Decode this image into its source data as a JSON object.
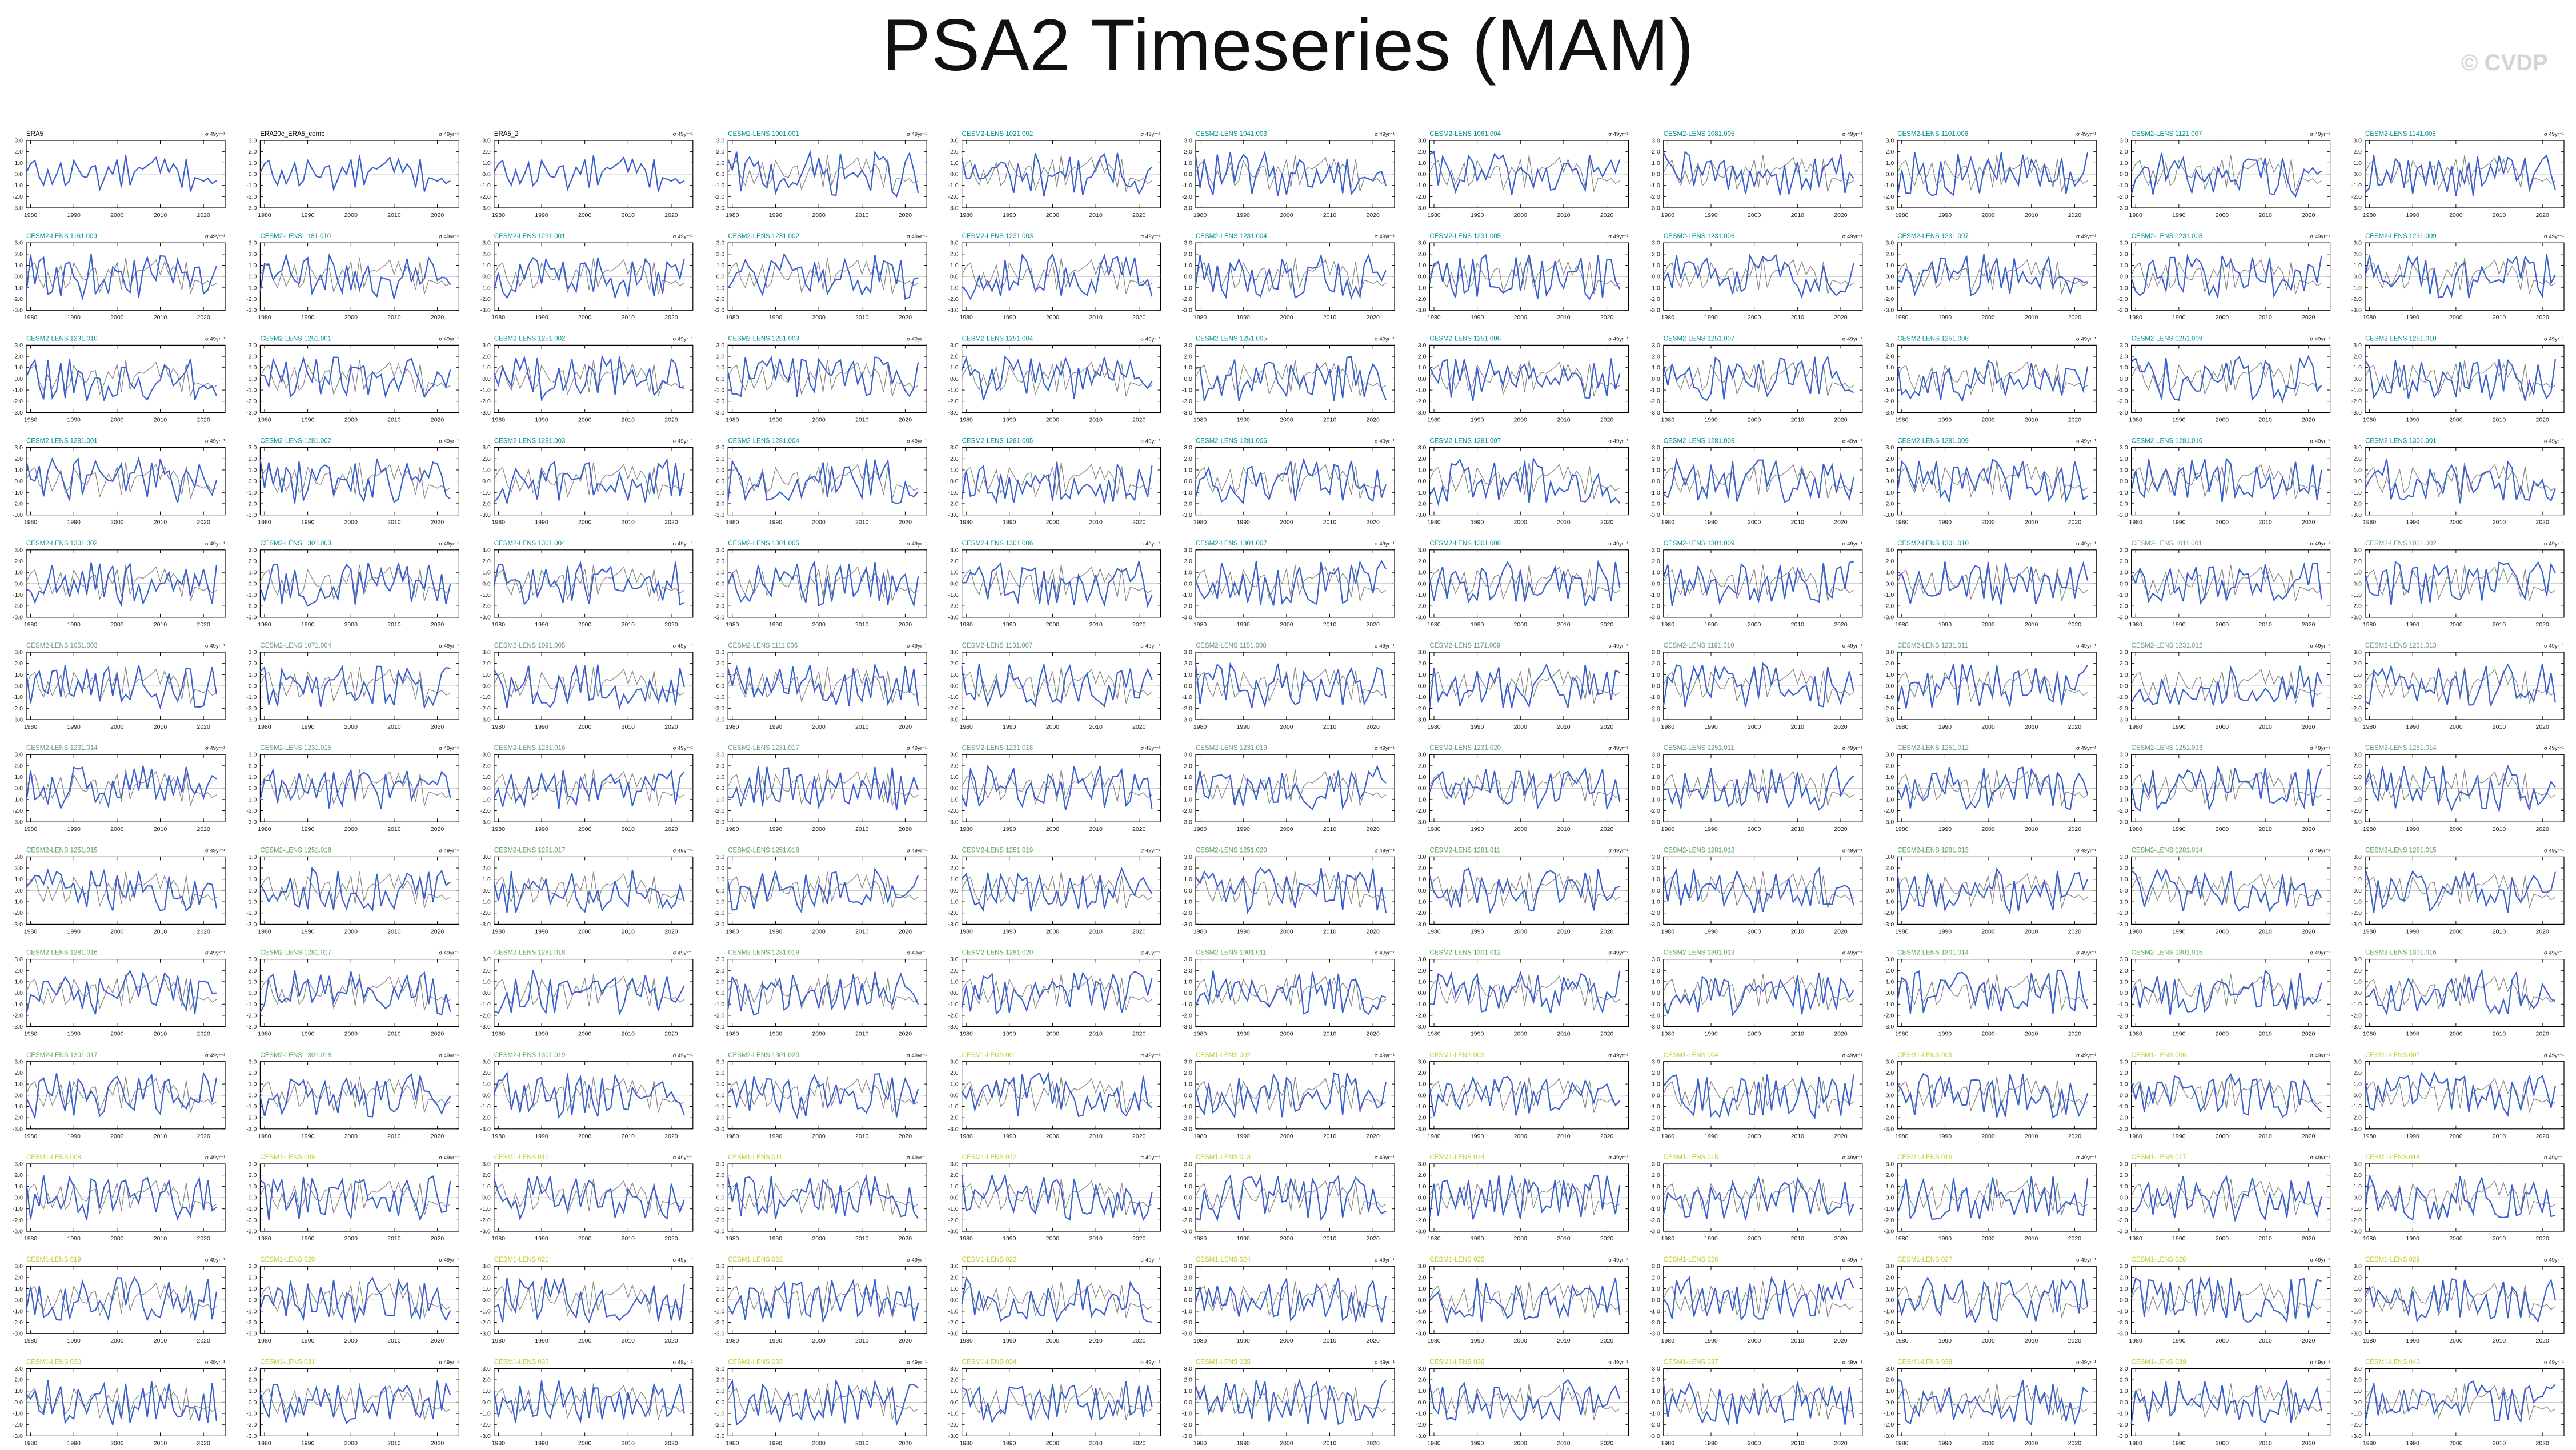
{
  "title": "PSA2 Timeseries (MAM)",
  "watermark": "© CVDP",
  "units": "σ 49yr⁻¹",
  "colors": {
    "observed_series": "#3a5fcd",
    "ensemble_series": "#888888",
    "obs_title": "#000000",
    "teal_title": "#009090",
    "grey_title": "#6a9a8a",
    "green_title": "#58a558",
    "yellow_title": "#c8c832"
  },
  "chart_data": {
    "type": "line",
    "xlim": [
      1979,
      2025
    ],
    "x_ticks": [
      "1980",
      "1990",
      "2000",
      "2010",
      "2020"
    ],
    "y_ticks": [
      "3.0",
      "2.0",
      "1.0",
      "0.0",
      "-1.0",
      "-2.0",
      "-3.0"
    ],
    "ylim": [
      -3.0,
      3.0
    ],
    "grid": false,
    "series_names_note": "",
    "panels": [
      {
        "name": "ERA5",
        "color": "obs"
      },
      {
        "name": "ERA20c_ERA5_comb",
        "color": "obs"
      },
      {
        "name": "ERA5_2",
        "color": "obs"
      },
      {
        "name": "CESM2-LENS 1001.001",
        "color": "teal"
      },
      {
        "name": "CESM2-LENS 1021.002",
        "color": "teal"
      },
      {
        "name": "CESM2-LENS 1041.003",
        "color": "teal"
      },
      {
        "name": "CESM2-LENS 1061.004",
        "color": "teal"
      },
      {
        "name": "CESM2-LENS 1081.005",
        "color": "teal"
      },
      {
        "name": "CESM2-LENS 1101.006",
        "color": "teal"
      },
      {
        "name": "CESM2-LENS 1121.007",
        "color": "teal"
      },
      {
        "name": "CESM2-LENS 1141.008",
        "color": "teal"
      },
      {
        "name": "CESM2-LENS 1161.009",
        "color": "teal"
      },
      {
        "name": "CESM2-LENS 1181.010",
        "color": "teal"
      },
      {
        "name": "CESM2-LENS 1231.001",
        "color": "teal"
      },
      {
        "name": "CESM2-LENS 1231.002",
        "color": "teal"
      },
      {
        "name": "CESM2-LENS 1231.003",
        "color": "teal"
      },
      {
        "name": "CESM2-LENS 1231.004",
        "color": "teal"
      },
      {
        "name": "CESM2-LENS 1231.005",
        "color": "teal"
      },
      {
        "name": "CESM2-LENS 1231.006",
        "color": "teal"
      },
      {
        "name": "CESM2-LENS 1231.007",
        "color": "teal"
      },
      {
        "name": "CESM2-LENS 1231.008",
        "color": "teal"
      },
      {
        "name": "CESM2-LENS 1231.009",
        "color": "teal"
      },
      {
        "name": "CESM2-LENS 1231.010",
        "color": "teal"
      },
      {
        "name": "CESM2-LENS 1251.001",
        "color": "teal"
      },
      {
        "name": "CESM2-LENS 1251.002",
        "color": "teal"
      },
      {
        "name": "CESM2-LENS 1251.003",
        "color": "teal"
      },
      {
        "name": "CESM2-LENS 1251.004",
        "color": "teal"
      },
      {
        "name": "CESM2-LENS 1251.005",
        "color": "teal"
      },
      {
        "name": "CESM2-LENS 1251.006",
        "color": "teal"
      },
      {
        "name": "CESM2-LENS 1251.007",
        "color": "teal"
      },
      {
        "name": "CESM2-LENS 1251.008",
        "color": "teal"
      },
      {
        "name": "CESM2-LENS 1251.009",
        "color": "teal"
      },
      {
        "name": "CESM2-LENS 1251.010",
        "color": "teal"
      },
      {
        "name": "CESM2-LENS 1281.001",
        "color": "teal"
      },
      {
        "name": "CESM2-LENS 1281.002",
        "color": "teal"
      },
      {
        "name": "CESM2-LENS 1281.003",
        "color": "teal"
      },
      {
        "name": "CESM2-LENS 1281.004",
        "color": "teal"
      },
      {
        "name": "CESM2-LENS 1281.005",
        "color": "teal"
      },
      {
        "name": "CESM2-LENS 1281.006",
        "color": "teal"
      },
      {
        "name": "CESM2-LENS 1281.007",
        "color": "teal"
      },
      {
        "name": "CESM2-LENS 1281.008",
        "color": "teal"
      },
      {
        "name": "CESM2-LENS 1281.009",
        "color": "teal"
      },
      {
        "name": "CESM2-LENS 1281.010",
        "color": "teal"
      },
      {
        "name": "CESM2-LENS 1301.001",
        "color": "teal"
      },
      {
        "name": "CESM2-LENS 1301.002",
        "color": "teal"
      },
      {
        "name": "CESM2-LENS 1301.003",
        "color": "teal"
      },
      {
        "name": "CESM2-LENS 1301.004",
        "color": "teal"
      },
      {
        "name": "CESM2-LENS 1301.005",
        "color": "teal"
      },
      {
        "name": "CESM2-LENS 1301.006",
        "color": "teal"
      },
      {
        "name": "CESM2-LENS 1301.007",
        "color": "teal"
      },
      {
        "name": "CESM2-LENS 1301.008",
        "color": "teal"
      },
      {
        "name": "CESM2-LENS 1301.009",
        "color": "teal"
      },
      {
        "name": "CESM2-LENS 1301.010",
        "color": "teal"
      },
      {
        "name": "CESM2-LENS 1011.001",
        "color": "grey"
      },
      {
        "name": "CESM2-LENS 1031.002",
        "color": "grey"
      },
      {
        "name": "CESM2-LENS 1051.003",
        "color": "grey"
      },
      {
        "name": "CESM2-LENS 1071.004",
        "color": "grey"
      },
      {
        "name": "CESM2-LENS 1091.005",
        "color": "grey"
      },
      {
        "name": "CESM2-LENS 1111.006",
        "color": "grey"
      },
      {
        "name": "CESM2-LENS 1131.007",
        "color": "grey"
      },
      {
        "name": "CESM2-LENS 1151.008",
        "color": "grey"
      },
      {
        "name": "CESM2-LENS 1171.009",
        "color": "grey"
      },
      {
        "name": "CESM2-LENS 1191.010",
        "color": "grey"
      },
      {
        "name": "CESM2-LENS 1231.011",
        "color": "grey"
      },
      {
        "name": "CESM2-LENS 1231.012",
        "color": "grey"
      },
      {
        "name": "CESM2-LENS 1231.013",
        "color": "grey"
      },
      {
        "name": "CESM2-LENS 1231.014",
        "color": "grey"
      },
      {
        "name": "CESM2-LENS 1231.015",
        "color": "grey"
      },
      {
        "name": "CESM2-LENS 1231.016",
        "color": "grey"
      },
      {
        "name": "CESM2-LENS 1231.017",
        "color": "grey"
      },
      {
        "name": "CESM2-LENS 1231.018",
        "color": "grey"
      },
      {
        "name": "CESM2-LENS 1231.019",
        "color": "grey"
      },
      {
        "name": "CESM2-LENS 1231.020",
        "color": "grey"
      },
      {
        "name": "CESM2-LENS 1251.011",
        "color": "grey"
      },
      {
        "name": "CESM2-LENS 1251.012",
        "color": "grey"
      },
      {
        "name": "CESM2-LENS 1251.013",
        "color": "grey"
      },
      {
        "name": "CESM2-LENS 1251.014",
        "color": "grey"
      },
      {
        "name": "CESM2-LENS 1251.015",
        "color": "green"
      },
      {
        "name": "CESM2-LENS 1251.016",
        "color": "green"
      },
      {
        "name": "CESM2-LENS 1251.017",
        "color": "green"
      },
      {
        "name": "CESM2-LENS 1251.018",
        "color": "green"
      },
      {
        "name": "CESM2-LENS 1251.019",
        "color": "green"
      },
      {
        "name": "CESM2-LENS 1251.020",
        "color": "green"
      },
      {
        "name": "CESM2-LENS 1281.011",
        "color": "green"
      },
      {
        "name": "CESM2-LENS 1281.012",
        "color": "green"
      },
      {
        "name": "CESM2-LENS 1281.013",
        "color": "green"
      },
      {
        "name": "CESM2-LENS 1281.014",
        "color": "green"
      },
      {
        "name": "CESM2-LENS 1281.015",
        "color": "green"
      },
      {
        "name": "CESM2-LENS 1281.016",
        "color": "green"
      },
      {
        "name": "CESM2-LENS 1281.017",
        "color": "green"
      },
      {
        "name": "CESM2-LENS 1281.018",
        "color": "green"
      },
      {
        "name": "CESM2-LENS 1281.019",
        "color": "green"
      },
      {
        "name": "CESM2-LENS 1281.020",
        "color": "green"
      },
      {
        "name": "CESM2-LENS 1301.011",
        "color": "green"
      },
      {
        "name": "CESM2-LENS 1301.012",
        "color": "green"
      },
      {
        "name": "CESM2-LENS 1301.013",
        "color": "green"
      },
      {
        "name": "CESM2-LENS 1301.014",
        "color": "green"
      },
      {
        "name": "CESM2-LENS 1301.015",
        "color": "green"
      },
      {
        "name": "CESM2-LENS 1301.016",
        "color": "green"
      },
      {
        "name": "CESM2-LENS 1301.017",
        "color": "green"
      },
      {
        "name": "CESM2-LENS 1301.018",
        "color": "green"
      },
      {
        "name": "CESM2-LENS 1301.019",
        "color": "green"
      },
      {
        "name": "CESM2-LENS 1301.020",
        "color": "green"
      },
      {
        "name": "CESM1-LENS 001",
        "color": "yellow"
      },
      {
        "name": "CESM1-LENS 002",
        "color": "yellow"
      },
      {
        "name": "CESM1-LENS 003",
        "color": "yellow"
      },
      {
        "name": "CESM1-LENS 004",
        "color": "yellow"
      },
      {
        "name": "CESM1-LENS 005",
        "color": "yellow"
      },
      {
        "name": "CESM1-LENS 006",
        "color": "yellow"
      },
      {
        "name": "CESM1-LENS 007",
        "color": "yellow"
      },
      {
        "name": "CESM1-LENS 008",
        "color": "yellow"
      },
      {
        "name": "CESM1-LENS 009",
        "color": "yellow"
      },
      {
        "name": "CESM1-LENS 010",
        "color": "yellow"
      },
      {
        "name": "CESM1-LENS 011",
        "color": "yellow"
      },
      {
        "name": "CESM1-LENS 012",
        "color": "yellow"
      },
      {
        "name": "CESM1-LENS 013",
        "color": "yellow"
      },
      {
        "name": "CESM1-LENS 014",
        "color": "yellow"
      },
      {
        "name": "CESM1-LENS 015",
        "color": "yellow"
      },
      {
        "name": "CESM1-LENS 016",
        "color": "yellow"
      },
      {
        "name": "CESM1-LENS 017",
        "color": "yellow"
      },
      {
        "name": "CESM1-LENS 018",
        "color": "yellow"
      },
      {
        "name": "CESM1-LENS 019",
        "color": "yellow"
      },
      {
        "name": "CESM1-LENS 020",
        "color": "yellow"
      },
      {
        "name": "CESM1-LENS 021",
        "color": "yellow"
      },
      {
        "name": "CESM1-LENS 022",
        "color": "yellow"
      },
      {
        "name": "CESM1-LENS 023",
        "color": "yellow"
      },
      {
        "name": "CESM1-LENS 024",
        "color": "yellow"
      },
      {
        "name": "CESM1-LENS 025",
        "color": "yellow"
      },
      {
        "name": "CESM1-LENS 026",
        "color": "yellow"
      },
      {
        "name": "CESM1-LENS 027",
        "color": "yellow"
      },
      {
        "name": "CESM1-LENS 028",
        "color": "yellow"
      },
      {
        "name": "CESM1-LENS 029",
        "color": "yellow"
      },
      {
        "name": "CESM1-LENS 030",
        "color": "yellow"
      },
      {
        "name": "CESM1-LENS 031",
        "color": "yellow"
      },
      {
        "name": "CESM1-LENS 032",
        "color": "yellow"
      },
      {
        "name": "CESM1-LENS 033",
        "color": "yellow"
      },
      {
        "name": "CESM1-LENS 034",
        "color": "yellow"
      },
      {
        "name": "CESM1-LENS 035",
        "color": "yellow"
      },
      {
        "name": "CESM1-LENS 036",
        "color": "yellow"
      },
      {
        "name": "CESM1-LENS 037",
        "color": "yellow"
      },
      {
        "name": "CESM1-LENS 038",
        "color": "yellow"
      },
      {
        "name": "CESM1-LENS 039",
        "color": "yellow"
      },
      {
        "name": "CESM1-LENS 040",
        "color": "yellow"
      }
    ]
  }
}
